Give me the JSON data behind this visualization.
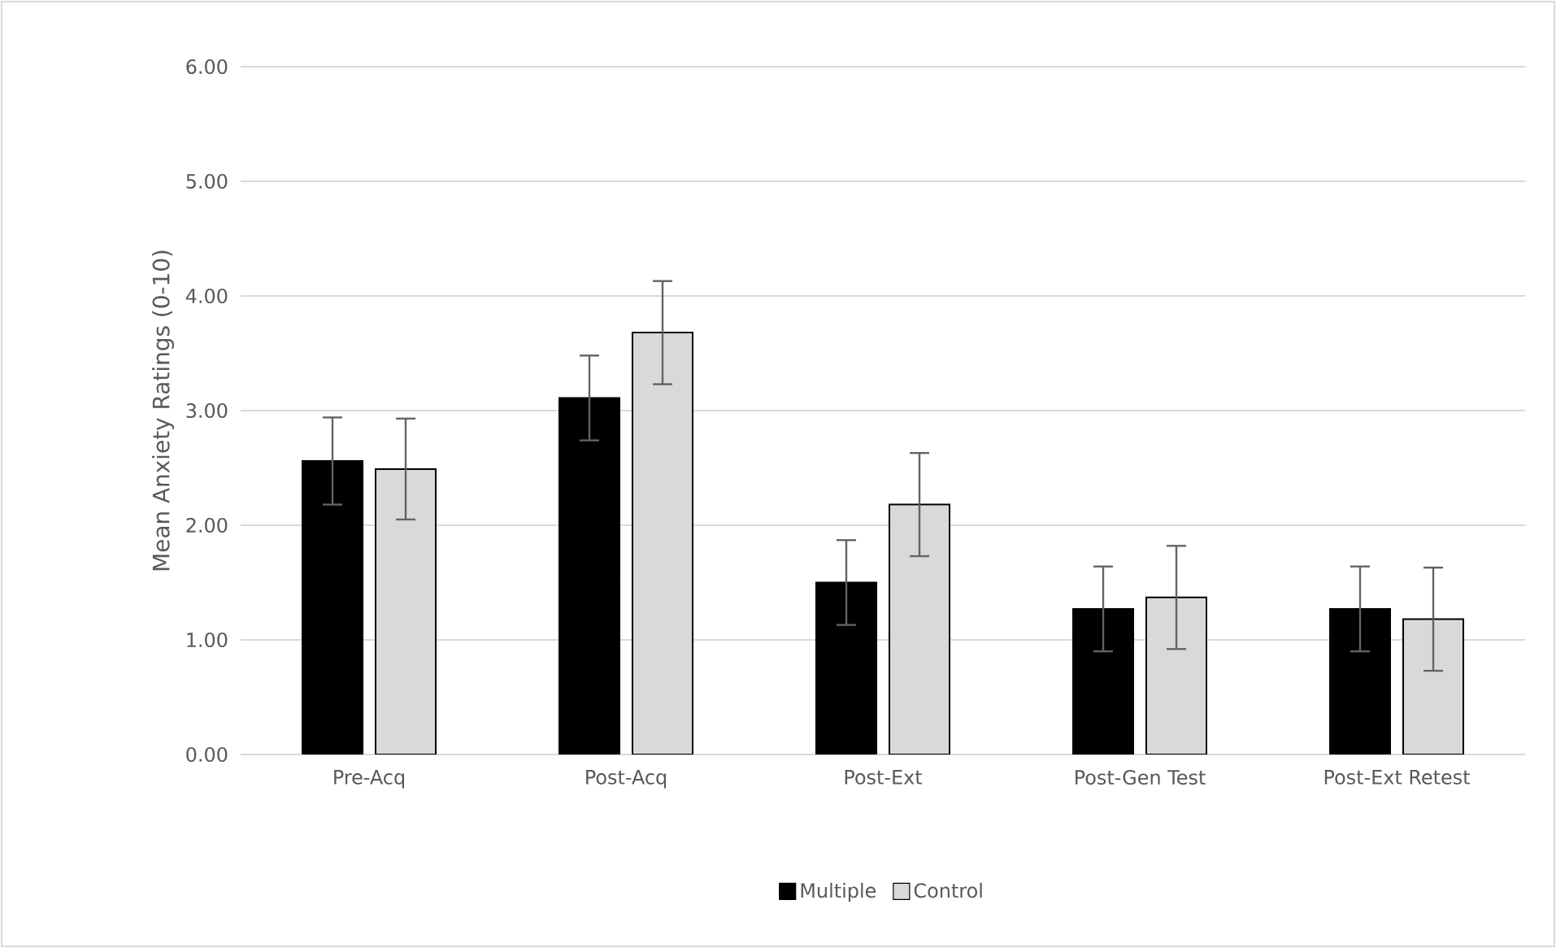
{
  "chart_data": {
    "type": "bar",
    "ylabel": "Mean Anxiety Ratings (0-10)",
    "categories": [
      "Pre-Acq",
      "Post-Acq",
      "Post-Ext",
      "Post-Gen Test",
      "Post-Ext Retest"
    ],
    "series": [
      {
        "name": "Multiple",
        "color": "#000000",
        "values": [
          2.56,
          3.11,
          1.5,
          1.27,
          1.27
        ],
        "errors": [
          0.38,
          0.37,
          0.37,
          0.37,
          0.37
        ]
      },
      {
        "name": "Control",
        "color": "#d9d9d9",
        "values": [
          2.49,
          3.68,
          2.18,
          1.37,
          1.18
        ],
        "errors": [
          0.44,
          0.45,
          0.45,
          0.45,
          0.45
        ]
      }
    ],
    "ylim": [
      0,
      6
    ],
    "yticks": [
      {
        "value": 0,
        "label": "0.00"
      },
      {
        "value": 1,
        "label": "1.00"
      },
      {
        "value": 2,
        "label": "2.00"
      },
      {
        "value": 3,
        "label": "3.00"
      },
      {
        "value": 4,
        "label": "4.00"
      },
      {
        "value": 5,
        "label": "5.00"
      },
      {
        "value": 6,
        "label": "6.00"
      }
    ],
    "grid": "y",
    "legend": "bottom"
  }
}
